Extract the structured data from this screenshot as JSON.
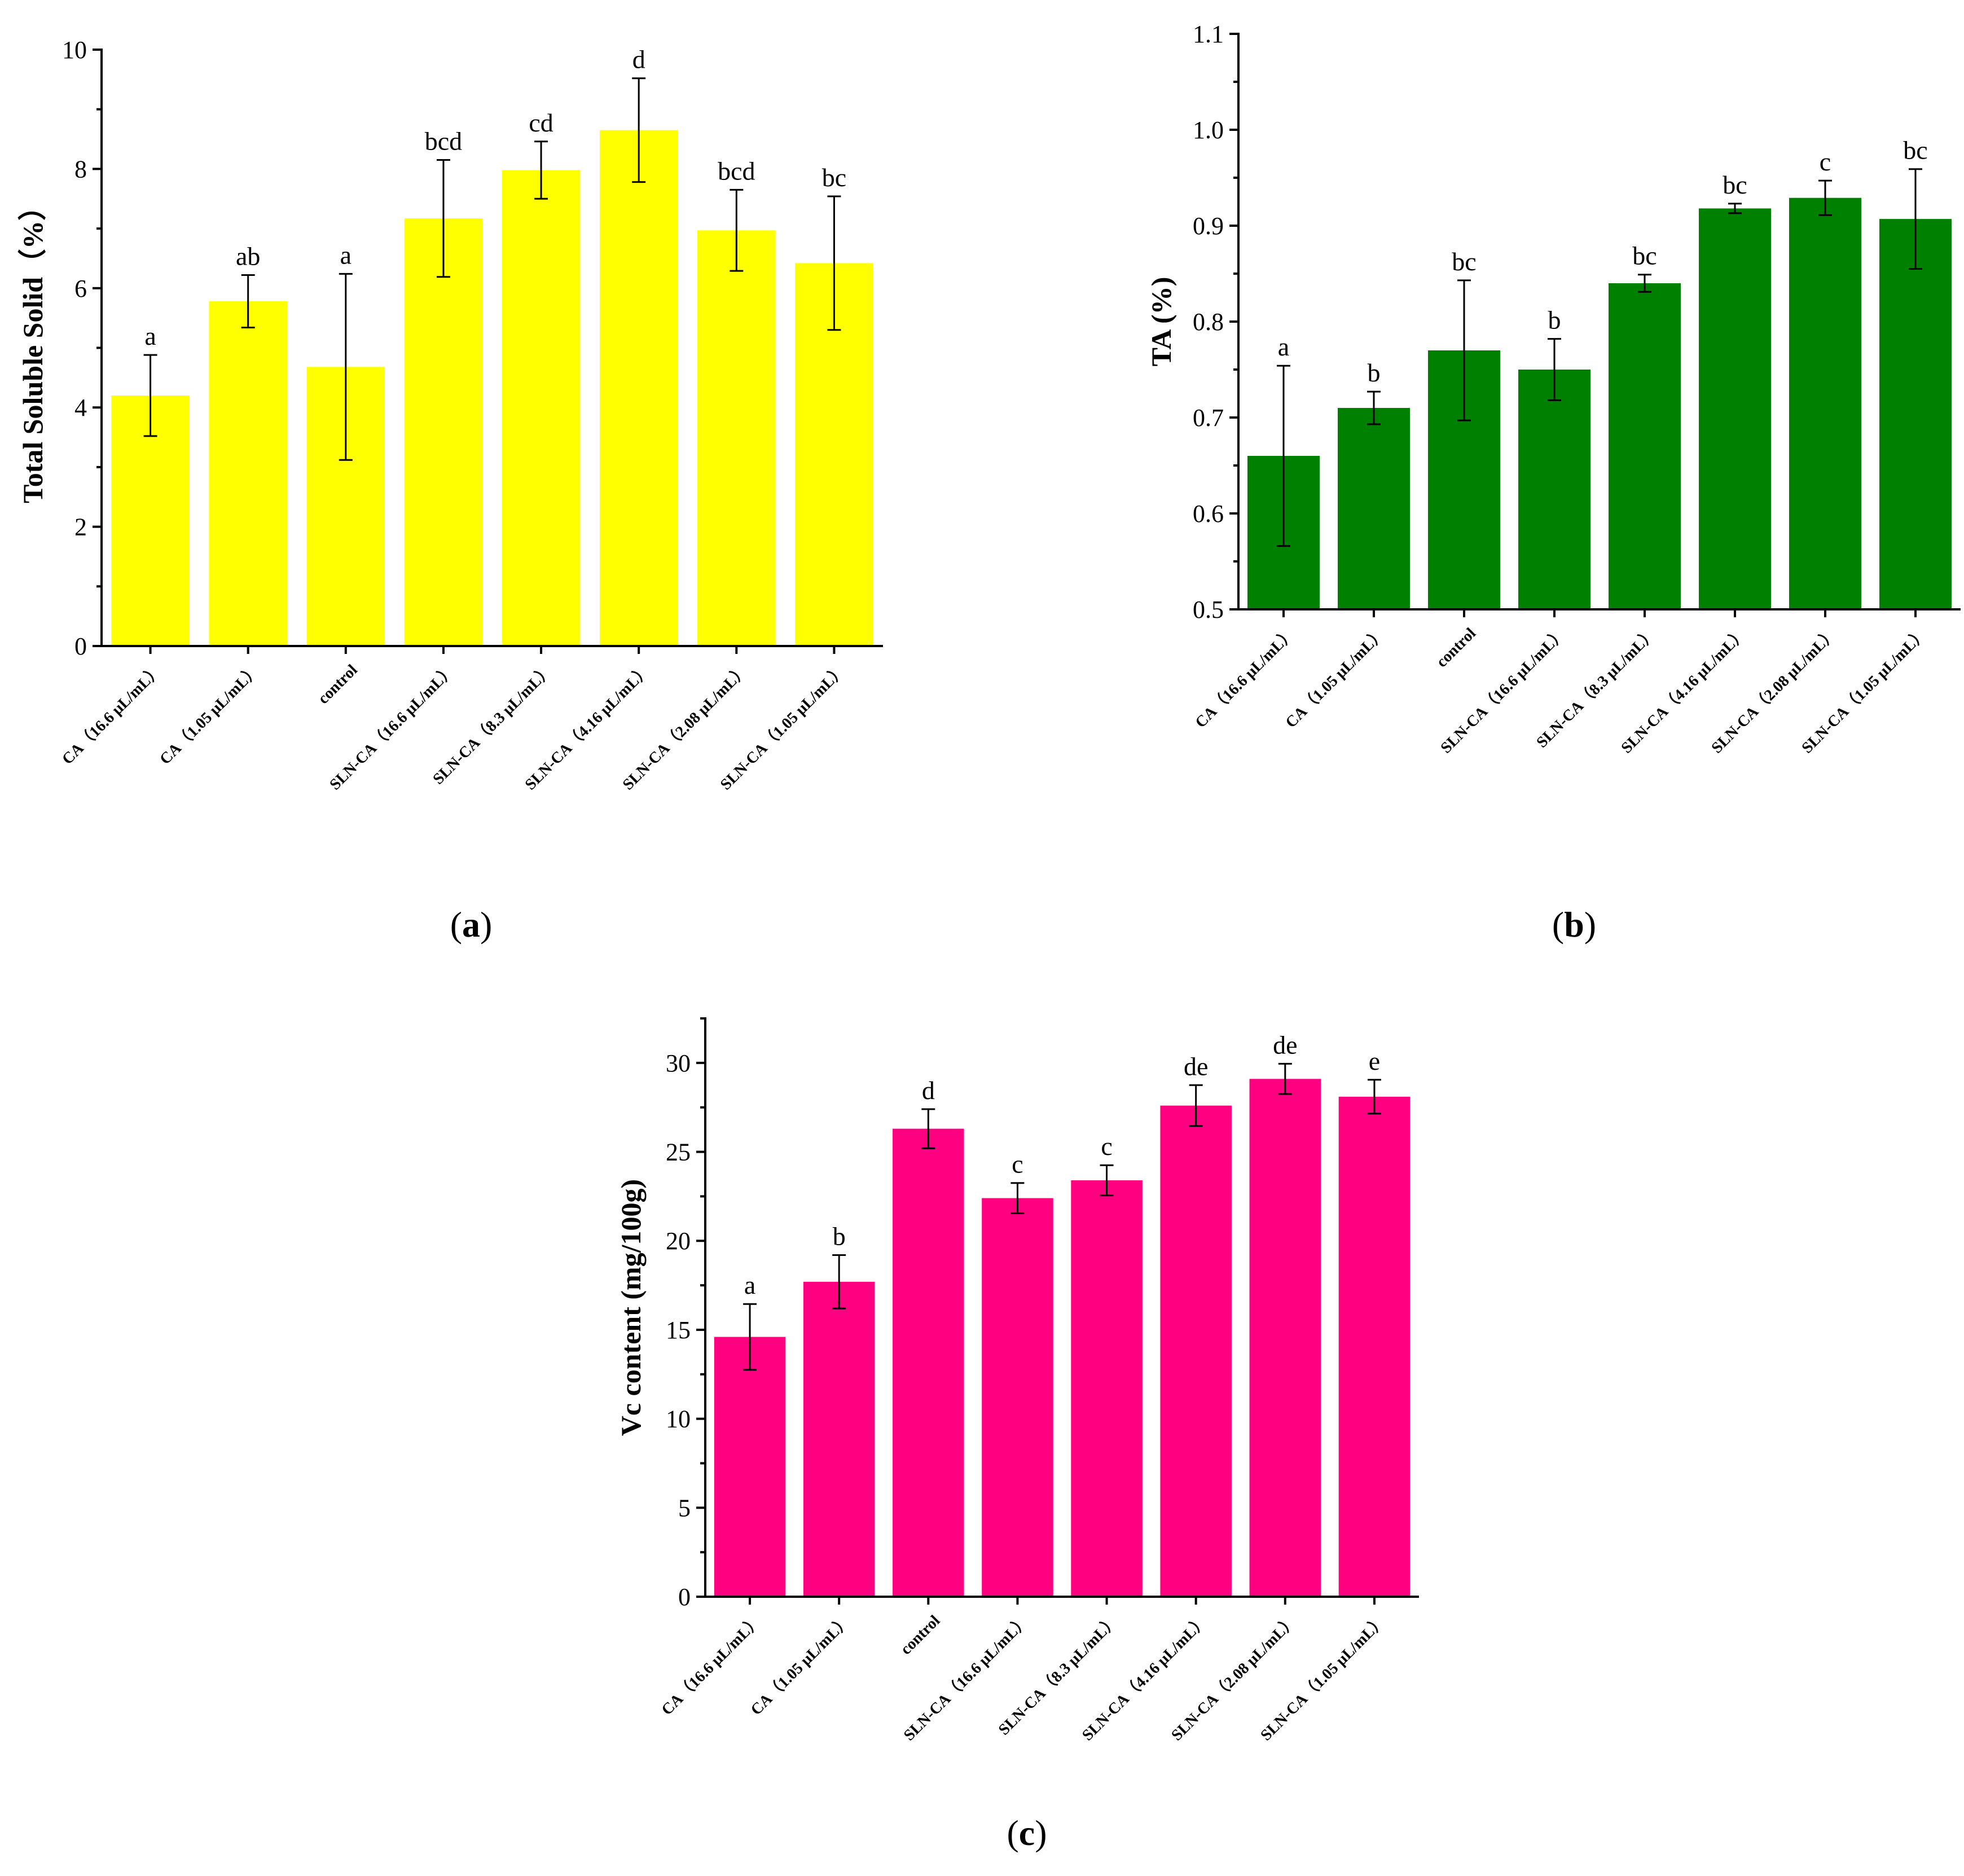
{
  "chart_data": [
    {
      "type": "bar",
      "title": "",
      "panel_label": "a",
      "xlabel": "",
      "ylabel": "Total Soluble Solid（%）",
      "ylim": [
        0,
        10
      ],
      "yticks": [
        0,
        2,
        4,
        6,
        8,
        10
      ],
      "color": "#ffff00",
      "categories": [
        "CA（16.6 μL/mL）",
        "CA（1.05 μL/mL）",
        "control",
        "SLN-CA（16.6 μL/mL）",
        "SLN-CA（8.3 μL/mL）",
        "SLN-CA（4.16 μL/mL）",
        "SLN-CA（2.08 μL/mL）",
        "SLN-CA（1.05 μL/mL）"
      ],
      "values": [
        4.2,
        5.78,
        4.68,
        7.17,
        7.98,
        8.65,
        6.97,
        6.42
      ],
      "errors": [
        0.68,
        0.44,
        1.56,
        0.98,
        0.48,
        0.87,
        0.68,
        1.12
      ],
      "significance": [
        "a",
        "ab",
        "a",
        "bcd",
        "cd",
        "d",
        "bcd",
        "bc"
      ]
    },
    {
      "type": "bar",
      "title": "",
      "panel_label": "b",
      "xlabel": "",
      "ylabel": "TA (%)",
      "ylim": [
        0.5,
        1.1
      ],
      "yticks": [
        0.5,
        0.6,
        0.7,
        0.8,
        0.9,
        1.0,
        1.1
      ],
      "ytick_labels": [
        "0.5",
        "0.6",
        "0.7",
        "0.8",
        "0.9",
        "1.0",
        "1.1"
      ],
      "color": "#008000",
      "categories": [
        "CA（16.6 μL/mL）",
        "CA（1.05 μL/mL）",
        "control",
        "SLN-CA（16.6 μL/mL）",
        "SLN-CA（8.3 μL/mL）",
        "SLN-CA（4.16 μL/mL）",
        "SLN-CA（2.08 μL/mL）",
        "SLN-CA（1.05 μL/mL）"
      ],
      "values": [
        0.66,
        0.71,
        0.77,
        0.75,
        0.84,
        0.918,
        0.929,
        0.907
      ],
      "errors": [
        0.094,
        0.017,
        0.073,
        0.032,
        0.009,
        0.005,
        0.018,
        0.052
      ],
      "significance": [
        "a",
        "b",
        "bc",
        "b",
        "bc",
        "bc",
        "c",
        "bc"
      ]
    },
    {
      "type": "bar",
      "title": "",
      "panel_label": "c",
      "xlabel": "",
      "ylabel": "Vc content (mg/100g)",
      "ylim": [
        0,
        32.5
      ],
      "yticks": [
        0,
        5,
        10,
        15,
        20,
        25,
        30
      ],
      "color": "#ff0080",
      "categories": [
        "CA（16.6 μL/mL）",
        "CA（1.05 μL/mL）",
        "control",
        "SLN-CA（16.6 μL/mL）",
        "SLN-CA（8.3 μL/mL）",
        "SLN-CA（4.16 μL/mL）",
        "SLN-CA（2.08 μL/mL）",
        "SLN-CA（1.05 μL/mL）"
      ],
      "values": [
        14.6,
        17.7,
        26.3,
        22.4,
        23.4,
        27.6,
        29.1,
        28.1
      ],
      "errors": [
        1.85,
        1.5,
        1.1,
        0.85,
        0.85,
        1.15,
        0.85,
        0.95
      ],
      "significance": [
        "a",
        "b",
        "d",
        "c",
        "c",
        "de",
        "de",
        "e"
      ]
    }
  ]
}
